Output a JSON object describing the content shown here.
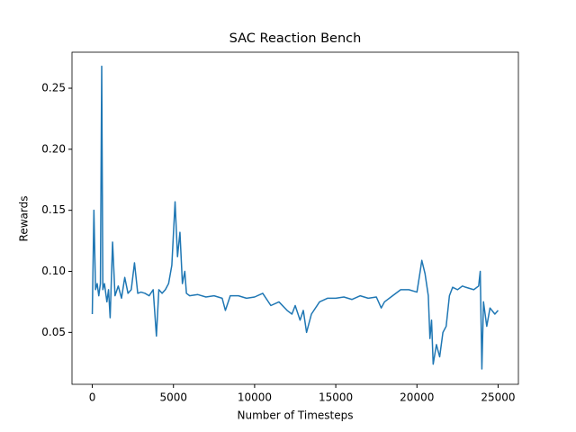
{
  "chart_data": {
    "type": "line",
    "title": "SAC Reaction Bench",
    "x_label": "Number of Timesteps",
    "y_label": "Rewards",
    "x": [
      0,
      100,
      200,
      300,
      400,
      500,
      580,
      650,
      750,
      900,
      1000,
      1100,
      1250,
      1400,
      1600,
      1800,
      2000,
      2200,
      2400,
      2600,
      2800,
      3000,
      3250,
      3500,
      3750,
      3950,
      4100,
      4300,
      4500,
      4700,
      4900,
      5100,
      5250,
      5400,
      5550,
      5700,
      5800,
      6000,
      6500,
      7000,
      7500,
      8000,
      8200,
      8500,
      9000,
      9500,
      10000,
      10500,
      11000,
      11500,
      12000,
      12300,
      12500,
      12800,
      13000,
      13200,
      13500,
      14000,
      14500,
      15000,
      15500,
      16000,
      16500,
      17000,
      17500,
      17800,
      18000,
      18500,
      19000,
      19500,
      20000,
      20200,
      20300,
      20500,
      20700,
      20800,
      20900,
      21000,
      21200,
      21400,
      21600,
      21800,
      22000,
      22200,
      22500,
      22800,
      23000,
      23500,
      23800,
      23900,
      24000,
      24100,
      24300,
      24500,
      24800,
      25000
    ],
    "series": [
      {
        "name": "Rewards",
        "color": "#1f77b4",
        "values": [
          0.065,
          0.15,
          0.085,
          0.09,
          0.08,
          0.09,
          0.268,
          0.085,
          0.09,
          0.075,
          0.085,
          0.062,
          0.124,
          0.08,
          0.088,
          0.078,
          0.095,
          0.082,
          0.085,
          0.107,
          0.082,
          0.083,
          0.082,
          0.08,
          0.085,
          0.047,
          0.085,
          0.082,
          0.085,
          0.09,
          0.105,
          0.157,
          0.112,
          0.132,
          0.09,
          0.1,
          0.082,
          0.08,
          0.081,
          0.079,
          0.08,
          0.078,
          0.068,
          0.08,
          0.08,
          0.078,
          0.079,
          0.082,
          0.072,
          0.075,
          0.068,
          0.065,
          0.072,
          0.06,
          0.068,
          0.05,
          0.065,
          0.075,
          0.078,
          0.078,
          0.079,
          0.077,
          0.08,
          0.078,
          0.079,
          0.07,
          0.075,
          0.08,
          0.085,
          0.085,
          0.083,
          0.1,
          0.109,
          0.098,
          0.08,
          0.045,
          0.06,
          0.024,
          0.04,
          0.03,
          0.05,
          0.055,
          0.08,
          0.087,
          0.085,
          0.088,
          0.087,
          0.085,
          0.088,
          0.1,
          0.02,
          0.075,
          0.055,
          0.07,
          0.065,
          0.068
        ]
      }
    ],
    "xlim": [
      -1250,
      26250
    ],
    "xticks": [
      0,
      5000,
      10000,
      15000,
      20000,
      25000
    ],
    "ylim": [
      0.0075,
      0.2795
    ],
    "yticks": [
      0.05,
      {
        "value": 0.1,
        "label": "0.10"
      },
      0.15,
      {
        "value": 0.2,
        "label": "0.20"
      },
      0.25
    ]
  }
}
